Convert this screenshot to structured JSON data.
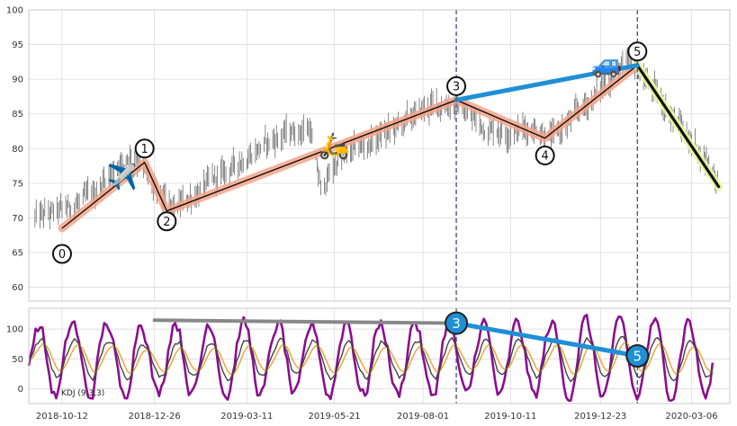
{
  "chart_data": [
    {
      "type": "line",
      "panel": "price",
      "ylim": [
        58,
        100
      ],
      "yticks": [
        60,
        65,
        70,
        75,
        80,
        85,
        90,
        95,
        100
      ],
      "ytick_labels": [
        "60",
        "65",
        "70",
        "75",
        "80",
        "85",
        "90",
        "95",
        "100"
      ],
      "x_axis": "dates",
      "grid": true,
      "price_series": {
        "kind": "ohlc-bars",
        "color": "#555555",
        "anchors": [
          [
            "2018-09-20",
            70.0
          ],
          [
            "2018-10-12",
            71.0
          ],
          [
            "2018-11-05",
            73.0
          ],
          [
            "2018-11-25",
            77.5
          ],
          [
            "2018-12-10",
            79.5
          ],
          [
            "2018-12-26",
            74.0
          ],
          [
            "2019-01-10",
            71.0
          ],
          [
            "2019-02-01",
            74.0
          ],
          [
            "2019-02-25",
            77.0
          ],
          [
            "2019-03-20",
            80.0
          ],
          [
            "2019-04-10",
            82.0
          ],
          [
            "2019-05-01",
            83.0
          ],
          [
            "2019-05-10",
            74.0
          ],
          [
            "2019-05-25",
            78.5
          ],
          [
            "2019-06-20",
            81.0
          ],
          [
            "2019-07-15",
            83.5
          ],
          [
            "2019-08-05",
            86.0
          ],
          [
            "2019-08-25",
            86.5
          ],
          [
            "2019-09-20",
            83.0
          ],
          [
            "2019-10-11",
            82.5
          ],
          [
            "2019-11-01",
            83.0
          ],
          [
            "2019-11-15",
            81.5
          ],
          [
            "2019-12-10",
            86.0
          ],
          [
            "2020-01-07",
            91.5
          ],
          [
            "2020-01-20",
            92.0
          ],
          [
            "2020-02-10",
            87.0
          ],
          [
            "2020-03-06",
            81.0
          ],
          [
            "2020-03-20",
            78.0
          ],
          [
            "2020-03-28",
            75.0
          ]
        ]
      },
      "wave_points": [
        {
          "label": "0",
          "date": "2018-10-12",
          "value": 68.5
        },
        {
          "label": "1",
          "date": "2018-12-18",
          "value": 78.0
        },
        {
          "label": "2",
          "date": "2019-01-05",
          "value": 71.0
        },
        {
          "label": "3",
          "date": "2019-08-28",
          "value": 87.0
        },
        {
          "label": "4",
          "date": "2019-11-08",
          "value": 81.5
        },
        {
          "label": "5",
          "date": "2020-01-22",
          "value": 92.0
        },
        {
          "label": "end",
          "date": "2020-03-28",
          "value": 74.5
        }
      ],
      "label_points": [
        {
          "label": "0",
          "date": "2018-10-12",
          "value": 64.8
        },
        {
          "label": "1",
          "date": "2018-12-18",
          "value": 80.0
        },
        {
          "label": "2",
          "date": "2019-01-05",
          "value": 69.5
        },
        {
          "label": "3",
          "date": "2019-08-28",
          "value": 89.0
        },
        {
          "label": "4",
          "date": "2019-11-08",
          "value": 79.0
        },
        {
          "label": "5",
          "date": "2020-01-22",
          "value": 94.0
        }
      ],
      "trend_line": {
        "from": {
          "date": "2019-08-28",
          "value": 87.0
        },
        "to": {
          "date": "2020-01-22",
          "value": 92.0
        },
        "color": "#1f8fd6"
      },
      "vlines": [
        "2019-08-28",
        "2020-01-22"
      ],
      "emoji_markers": [
        {
          "name": "airplane-icon",
          "glyph": "✈️",
          "date": "2018-11-30",
          "value": 76.0
        },
        {
          "name": "scooter-icon",
          "glyph": "🛵",
          "date": "2019-05-21",
          "value": 80.5
        },
        {
          "name": "car-icon",
          "glyph": "🚙",
          "date": "2019-12-28",
          "value": 92.3
        }
      ],
      "colors": {
        "wave_line": "#111111",
        "wave_glow": "#f4a58a",
        "final_glow": "#e8f7a0",
        "trend": "#1f8fd6",
        "vline": "#4a5a7a"
      }
    },
    {
      "type": "line",
      "panel": "kdj",
      "indicator_label": "KDJ (9,3,3)",
      "ylim": [
        -25,
        135
      ],
      "yticks": [
        0,
        50,
        100
      ],
      "ytick_labels": [
        "0",
        "50",
        "100"
      ],
      "grid": true,
      "xticks": [
        "2018-10-12",
        "2018-12-26",
        "2019-03-11",
        "2019-05-21",
        "2019-08-01",
        "2019-10-11",
        "2019-12-23",
        "2020-03-06"
      ],
      "xtick_labels": [
        "2018-10-12",
        "2018-12-26",
        "2019-03-11",
        "2019-05-21",
        "2019-08-01",
        "2019-10-11",
        "2019-12-23",
        "2020-03-06"
      ],
      "xlim": [
        "2018-09-15",
        "2020-04-06"
      ],
      "series": [
        {
          "name": "K",
          "color": "#444444"
        },
        {
          "name": "D",
          "color": "#f0a030"
        },
        {
          "name": "J",
          "color": "#8a0f8f"
        }
      ],
      "divergence_gray": {
        "from": {
          "date": "2018-12-26",
          "value": 115
        },
        "to": {
          "date": "2019-08-28",
          "value": 110
        },
        "color": "#888888"
      },
      "divergence_blue": {
        "from": {
          "date": "2019-08-28",
          "value": 110
        },
        "to": {
          "date": "2020-01-22",
          "value": 55
        },
        "color": "#1f8fd6"
      },
      "markers": [
        {
          "label": "3",
          "date": "2019-08-28",
          "value": 110
        },
        {
          "label": "5",
          "date": "2020-01-22",
          "value": 55
        }
      ]
    }
  ]
}
